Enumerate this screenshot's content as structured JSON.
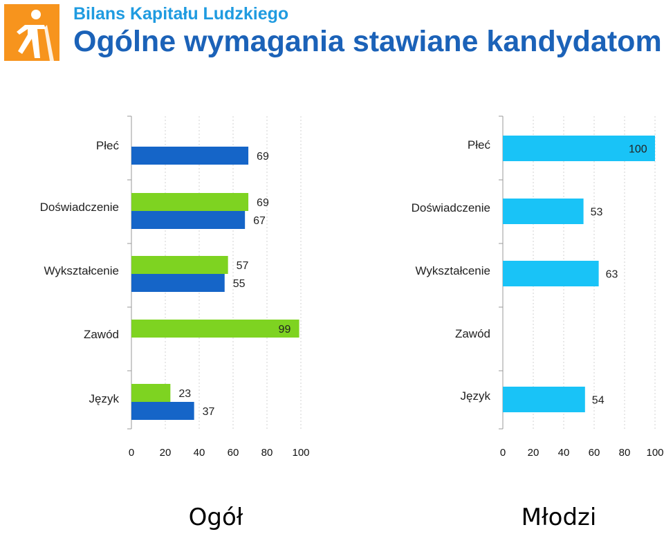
{
  "header": {
    "brand": "Bilans Kapitału Ludzkiego",
    "title": "Ogólne wymagania stawiane kandydatom"
  },
  "logo": {
    "icon": "walking-person-icon",
    "color": "#f7941d"
  },
  "colors": {
    "blue": "#1565c8",
    "green": "#7ed321",
    "cyan": "#19c3f7"
  },
  "chart_data": [
    {
      "type": "bar",
      "orientation": "horizontal",
      "caption": "Ogół",
      "categories": [
        "Płeć",
        "Doświadczenie",
        "Wykształcenie",
        "Zawód",
        "Język"
      ],
      "series": [
        {
          "name": "green",
          "color": "#7ed321",
          "values": [
            null,
            69,
            57,
            99,
            23
          ]
        },
        {
          "name": "blue",
          "color": "#1565c8",
          "values": [
            69,
            67,
            55,
            null,
            37
          ]
        }
      ],
      "xlim": [
        0,
        100
      ],
      "xticks": [
        "0",
        "20",
        "40",
        "60",
        "80",
        "100"
      ]
    },
    {
      "type": "bar",
      "orientation": "horizontal",
      "caption": "Młodzi",
      "categories": [
        "Płeć",
        "Doświadczenie",
        "Wykształcenie",
        "Zawód",
        "Język"
      ],
      "series": [
        {
          "name": "cyan",
          "color": "#19c3f7",
          "values": [
            100,
            53,
            63,
            null,
            54
          ]
        }
      ],
      "xlim": [
        0,
        100
      ],
      "xticks": [
        "0",
        "20",
        "40",
        "60",
        "80",
        "100"
      ]
    }
  ]
}
